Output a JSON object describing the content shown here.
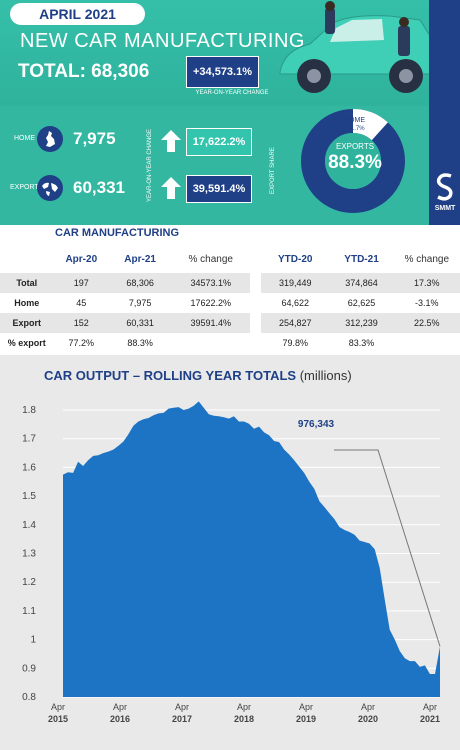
{
  "header": {
    "month": "APRIL 2021",
    "headline": "NEW CAR MANUFACTURING",
    "total_label": "TOTAL: 68,306",
    "yoy_change": "+34,573.1%",
    "yoy_caption": "YEAR-ON-YEAR CHANGE"
  },
  "summary": {
    "home_label": "HOME",
    "home_value": "7,975",
    "home_change": "17,622.2%",
    "export_label": "EXPORT",
    "export_value": "60,331",
    "export_change": "39,591.4%",
    "yoy_vertical": "YEAR-ON-YEAR CHANGE",
    "share_vertical": "EXPORT SHARE",
    "donut_home_label": "HOME",
    "donut_home_value": "11.7%",
    "donut_exports_label": "EXPORTS",
    "donut_exports_value": "88.3%",
    "export_share": 88.3,
    "brand": "SMMT"
  },
  "table": {
    "title": "CAR MANUFACTURING",
    "headers": [
      "",
      "Apr-20",
      "Apr-21",
      "% change",
      "YTD-20",
      "YTD-21",
      "% change"
    ],
    "rows": [
      [
        "Total",
        "197",
        "68,306",
        "34573.1%",
        "319,449",
        "374,864",
        "17.3%"
      ],
      [
        "Home",
        "45",
        "7,975",
        "17622.2%",
        "64,622",
        "62,625",
        "-3.1%"
      ],
      [
        "Export",
        "152",
        "60,331",
        "39591.4%",
        "254,827",
        "312,239",
        "22.5%"
      ],
      [
        "% export",
        "77.2%",
        "88.3%",
        "",
        "79.8%",
        "83.3%",
        ""
      ]
    ]
  },
  "chart_data": {
    "type": "area",
    "title": "CAR OUTPUT – ROLLING YEAR TOTALS",
    "unit": "(millions)",
    "ylim": [
      0.8,
      1.8
    ],
    "yticks": [
      "1.8",
      "1.7",
      "1.6",
      "1.5",
      "1.4",
      "1.3",
      "1.2",
      "1.1",
      "1",
      "0.9",
      "0.8"
    ],
    "xticks": [
      {
        "label": "Apr 2015",
        "month": "Apr",
        "year": "2015"
      },
      {
        "label": "Apr 2016",
        "month": "Apr",
        "year": "2016"
      },
      {
        "label": "Apr 2017",
        "month": "Apr",
        "year": "2017"
      },
      {
        "label": "Apr 2018",
        "month": "Apr",
        "year": "2018"
      },
      {
        "label": "Apr 2019",
        "month": "Apr",
        "year": "2019"
      },
      {
        "label": "Apr 2020",
        "month": "Apr",
        "year": "2020"
      },
      {
        "label": "Apr 2021",
        "month": "Apr",
        "year": "2021"
      }
    ],
    "x": [
      "2015-01",
      "2015-02",
      "2015-03",
      "2015-04",
      "2015-05",
      "2015-06",
      "2015-07",
      "2015-08",
      "2015-09",
      "2015-10",
      "2015-11",
      "2015-12",
      "2016-01",
      "2016-02",
      "2016-03",
      "2016-04",
      "2016-05",
      "2016-06",
      "2016-07",
      "2016-08",
      "2016-09",
      "2016-10",
      "2016-11",
      "2016-12",
      "2017-01",
      "2017-02",
      "2017-03",
      "2017-04",
      "2017-05",
      "2017-06",
      "2017-07",
      "2017-08",
      "2017-09",
      "2017-10",
      "2017-11",
      "2017-12",
      "2018-01",
      "2018-02",
      "2018-03",
      "2018-04",
      "2018-05",
      "2018-06",
      "2018-07",
      "2018-08",
      "2018-09",
      "2018-10",
      "2018-11",
      "2018-12",
      "2019-01",
      "2019-02",
      "2019-03",
      "2019-04",
      "2019-05",
      "2019-06",
      "2019-07",
      "2019-08",
      "2019-09",
      "2019-10",
      "2019-11",
      "2019-12",
      "2020-01",
      "2020-02",
      "2020-03",
      "2020-04",
      "2020-05",
      "2020-06",
      "2020-07",
      "2020-08",
      "2020-09",
      "2020-10",
      "2020-11",
      "2020-12",
      "2021-01",
      "2021-02",
      "2021-03",
      "2021-04"
    ],
    "values": [
      1.575,
      1.583,
      1.581,
      1.62,
      1.605,
      1.625,
      1.64,
      1.642,
      1.65,
      1.655,
      1.662,
      1.675,
      1.69,
      1.715,
      1.745,
      1.76,
      1.768,
      1.772,
      1.782,
      1.788,
      1.79,
      1.805,
      1.808,
      1.81,
      1.8,
      1.805,
      1.815,
      1.83,
      1.808,
      1.785,
      1.78,
      1.778,
      1.775,
      1.77,
      1.778,
      1.76,
      1.76,
      1.752,
      1.735,
      1.742,
      1.722,
      1.712,
      1.692,
      1.688,
      1.662,
      1.645,
      1.625,
      1.602,
      1.58,
      1.55,
      1.525,
      1.482,
      1.462,
      1.44,
      1.42,
      1.392,
      1.382,
      1.375,
      1.365,
      1.345,
      1.34,
      1.335,
      1.315,
      1.25,
      1.14,
      1.035,
      1.0,
      0.96,
      0.935,
      0.925,
      0.925,
      0.905,
      0.91,
      0.88,
      0.88,
      0.976
    ],
    "annotation": {
      "label": "976,343",
      "x": "2021-04",
      "y": 0.976343
    }
  }
}
